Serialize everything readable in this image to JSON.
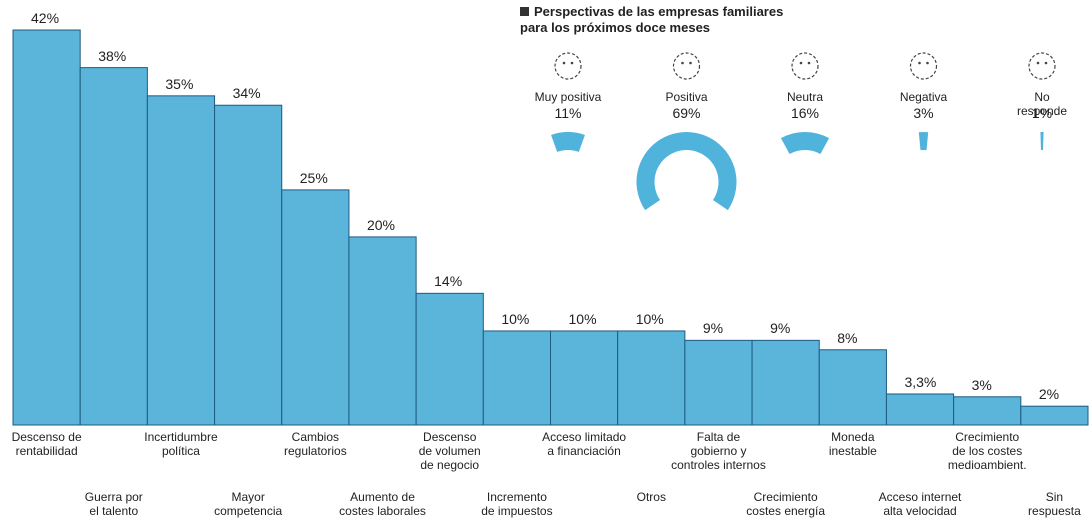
{
  "chart_data": [
    {
      "type": "bar",
      "categories": [
        "Descenso de\nrentabilidad",
        "Guerra por\nel talento",
        "Incertidumbre\npolítica",
        "Mayor\ncompetencia",
        "Cambios\nregulatorios",
        "Aumento de\ncostes laborales",
        "Descenso\nde volumen\nde negocio",
        "Incremento\nde impuestos",
        "Acceso limitado\na financiación",
        "Otros",
        "Falta de\ngobierno y\ncontroles internos",
        "Crecimiento\ncostes energía",
        "Moneda\ninestable",
        "Acceso internet\nalta velocidad",
        "Crecimiento\nde los costes\nmedioambient.",
        "Sin\nrespuesta"
      ],
      "values": [
        42,
        38,
        35,
        34,
        25,
        20,
        14,
        10,
        10,
        10,
        9,
        9,
        8,
        3.3,
        3,
        2
      ],
      "value_labels": [
        "42%",
        "38%",
        "35%",
        "34%",
        "25%",
        "20%",
        "14%",
        "10%",
        "10%",
        "10%",
        "9%",
        "9%",
        "8%",
        "3,3%",
        "3%",
        "2%"
      ],
      "color": "#5bb5da"
    },
    {
      "type": "donut",
      "title": "Perspectivas de las empresas familiares\npara los próximos doce meses",
      "categories": [
        "Muy positiva",
        "Positiva",
        "Neutra",
        "Negativa",
        "No responde"
      ],
      "values": [
        11,
        69,
        16,
        3,
        1
      ],
      "value_labels": [
        "11%",
        "69%",
        "16%",
        "3%",
        "1%"
      ],
      "color": "#4fb3dc"
    }
  ]
}
